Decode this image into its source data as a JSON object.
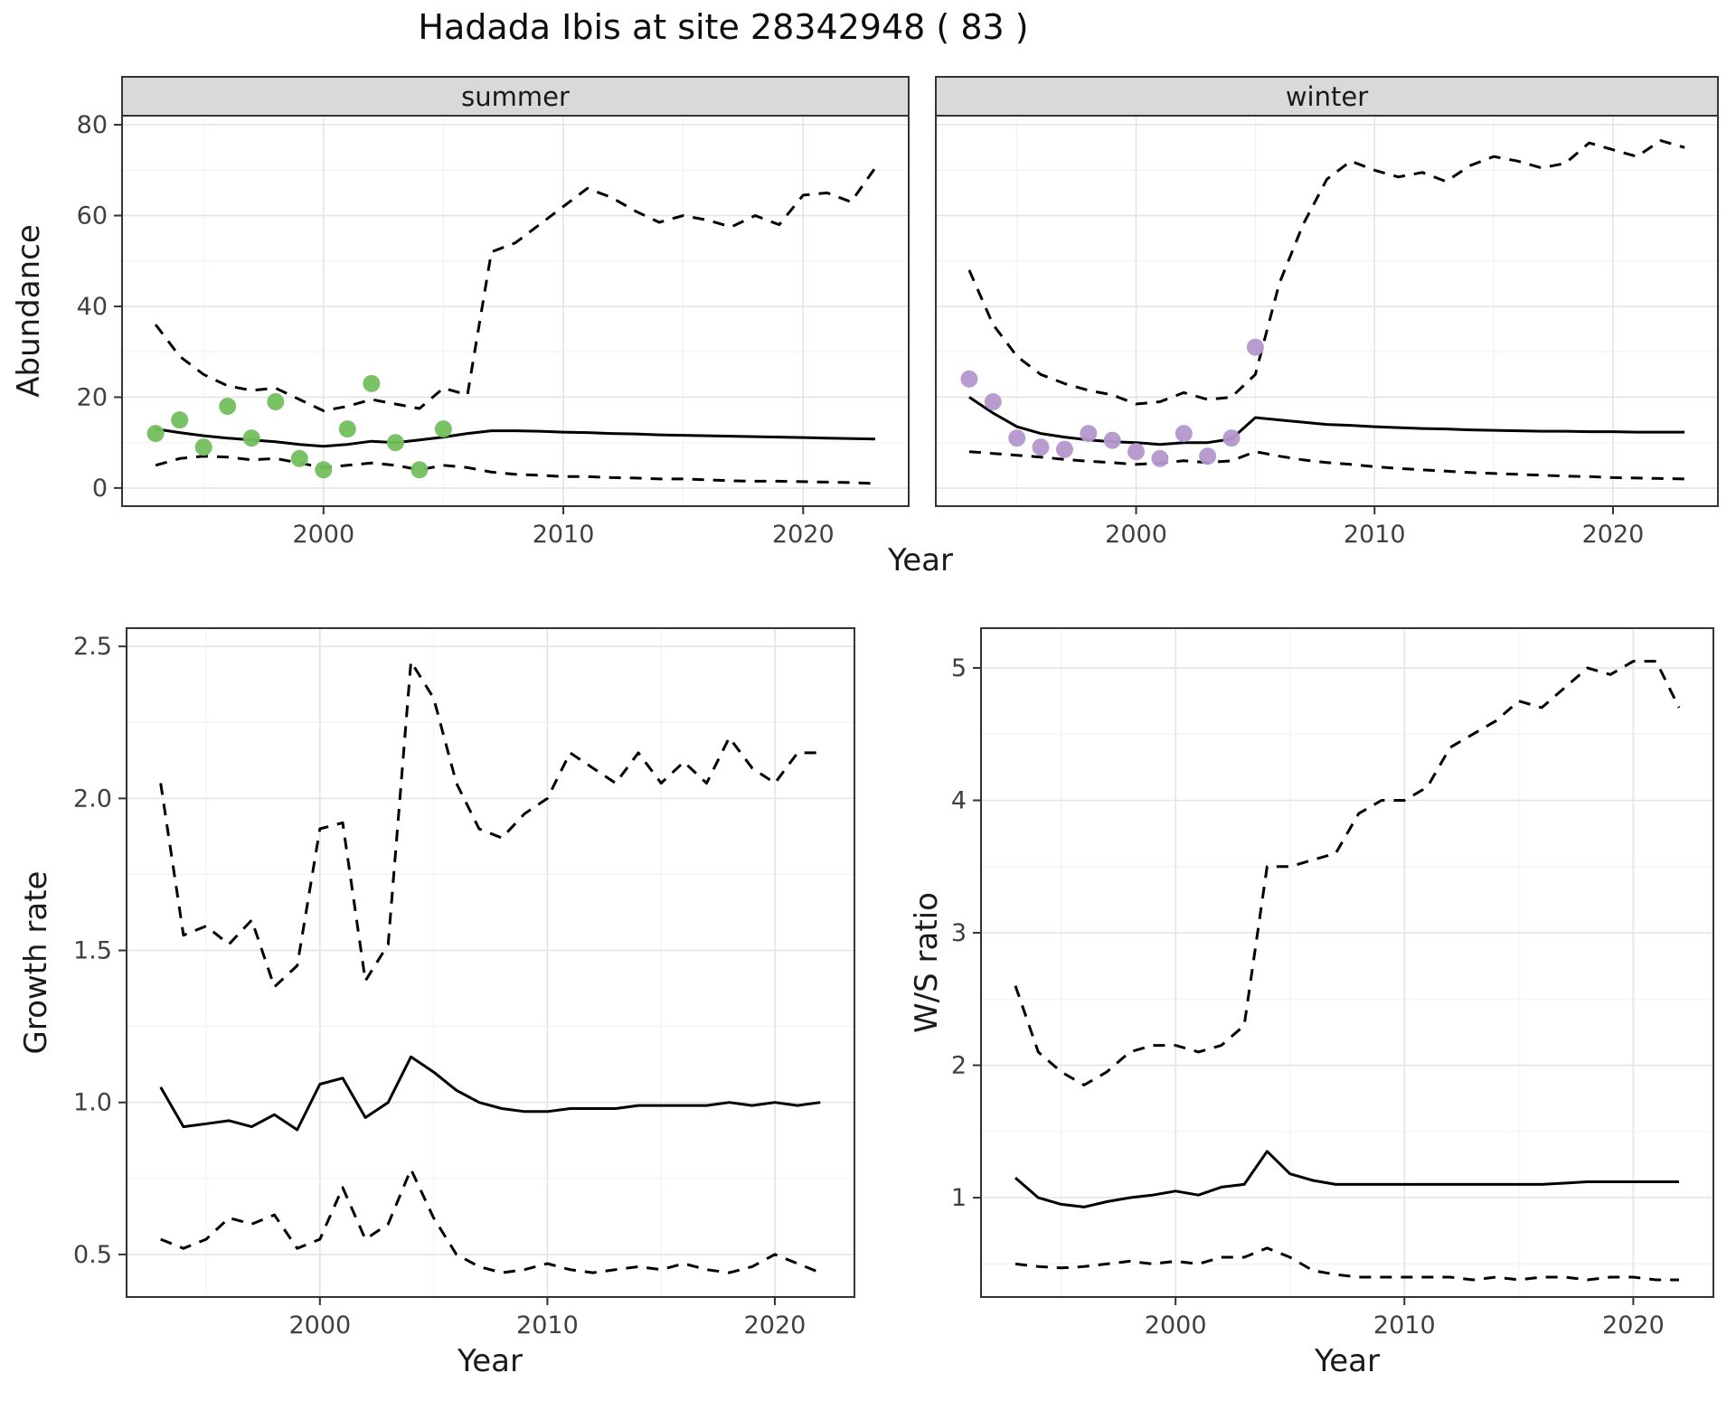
{
  "title": "Hadada Ibis at site 28342948 ( 83 )",
  "colors": {
    "summer_points": "#73BF5E",
    "winter_points": "#B497CE",
    "line": "#000000",
    "strip_background": "#D9D9D9",
    "panel_border": "#333333",
    "grid_major": "#E4E4E4",
    "grid_minor": "#F2F2F2",
    "tick_text": "#404040"
  },
  "chart_data": [
    {
      "id": "abundance-by-season",
      "type": "line",
      "xlabel": "Year",
      "ylabel": "Abundance",
      "legend": "none",
      "grid": true,
      "xlim": [
        1991.6,
        2024.4
      ],
      "ylim": [
        -4,
        82
      ],
      "xticks": [
        2000,
        2010,
        2020
      ],
      "xtick_labels": [
        "2000",
        "2010",
        "2020"
      ],
      "yticks": [
        0,
        20,
        40,
        60,
        80
      ],
      "ytick_labels": [
        "0",
        "20",
        "40",
        "60",
        "80"
      ],
      "years": [
        1993,
        1994,
        1995,
        1996,
        1997,
        1998,
        1999,
        2000,
        2001,
        2002,
        2003,
        2004,
        2005,
        2006,
        2007,
        2008,
        2009,
        2010,
        2011,
        2012,
        2013,
        2014,
        2015,
        2016,
        2017,
        2018,
        2019,
        2020,
        2021,
        2022,
        2023
      ],
      "panels": [
        {
          "facet": "summer",
          "median": [
            13,
            12.2,
            11.5,
            11,
            10.6,
            10.2,
            9.6,
            9.2,
            9.6,
            10.3,
            10,
            10.6,
            11.2,
            12,
            12.6,
            12.6,
            12.5,
            12.3,
            12.2,
            12,
            11.9,
            11.7,
            11.6,
            11.5,
            11.4,
            11.3,
            11.2,
            11.1,
            11,
            10.9,
            10.8
          ],
          "upper_ci": [
            36,
            29,
            25,
            22.5,
            21.5,
            22,
            19.5,
            17,
            18,
            19.5,
            18.5,
            17.5,
            22,
            20.5,
            52,
            54,
            58,
            62,
            66,
            64,
            61,
            58.5,
            60,
            59,
            57.5,
            60,
            58,
            64.5,
            65,
            63,
            70.5
          ],
          "lower_ci": [
            5,
            6.5,
            7,
            6.8,
            6.2,
            6.5,
            5.5,
            4.5,
            5,
            5.5,
            5,
            4,
            5,
            4.5,
            3.5,
            3,
            2.8,
            2.5,
            2.5,
            2.3,
            2.2,
            2,
            2,
            1.8,
            1.6,
            1.5,
            1.5,
            1.4,
            1.3,
            1.2,
            1
          ],
          "obs_years": [
            1993,
            1994,
            1995,
            1996,
            1997,
            1998,
            1999,
            2000,
            2001,
            2002,
            2003,
            2004,
            2005
          ],
          "obs_values": [
            12,
            15,
            9,
            18,
            11,
            19,
            6.5,
            4,
            13,
            23,
            10,
            4,
            13
          ]
        },
        {
          "facet": "winter",
          "median": [
            20,
            16.5,
            13.5,
            12,
            11.2,
            10.6,
            10.2,
            10,
            9.6,
            10,
            10,
            10.8,
            15.5,
            15,
            14.5,
            14,
            13.8,
            13.5,
            13.3,
            13.1,
            13,
            12.8,
            12.7,
            12.6,
            12.5,
            12.5,
            12.4,
            12.4,
            12.3,
            12.3,
            12.3
          ],
          "upper_ci": [
            48,
            36,
            29,
            25,
            23,
            21.5,
            20.5,
            18.5,
            19,
            21,
            19.5,
            20,
            25,
            45,
            58,
            68,
            72,
            70,
            68.5,
            69.5,
            67.5,
            71,
            73,
            72,
            70.5,
            71.5,
            76,
            74.5,
            73,
            76.5,
            75
          ],
          "lower_ci": [
            8,
            7.6,
            7.2,
            6.8,
            6.3,
            5.9,
            5.6,
            5.2,
            5.5,
            6,
            5.6,
            6,
            8,
            7,
            6.2,
            5.6,
            5.2,
            4.7,
            4.3,
            4,
            3.7,
            3.4,
            3.2,
            3,
            2.8,
            2.6,
            2.5,
            2.3,
            2.2,
            2.1,
            2
          ],
          "obs_years": [
            1993,
            1994,
            1995,
            1996,
            1997,
            1998,
            1999,
            2000,
            2001,
            2002,
            2003,
            2004,
            2005
          ],
          "obs_values": [
            24,
            19,
            11,
            9,
            8.5,
            12,
            10.5,
            8,
            6.5,
            12,
            7,
            11,
            31
          ]
        }
      ]
    },
    {
      "id": "growth-rate",
      "type": "line",
      "xlabel": "Year",
      "ylabel": "Growth rate",
      "legend": "none",
      "grid": true,
      "xlim": [
        1991.5,
        2023.5
      ],
      "ylim": [
        0.36,
        2.56
      ],
      "xticks": [
        2000,
        2010,
        2020
      ],
      "xtick_labels": [
        "2000",
        "2010",
        "2020"
      ],
      "yticks": [
        0.5,
        1.0,
        1.5,
        2.0,
        2.5
      ],
      "ytick_labels": [
        "0.5",
        "1.0",
        "1.5",
        "2.0",
        "2.5"
      ],
      "years": [
        1993,
        1994,
        1995,
        1996,
        1997,
        1998,
        1999,
        2000,
        2001,
        2002,
        2003,
        2004,
        2005,
        2006,
        2007,
        2008,
        2009,
        2010,
        2011,
        2012,
        2013,
        2014,
        2015,
        2016,
        2017,
        2018,
        2019,
        2020,
        2021,
        2022
      ],
      "median": [
        1.05,
        0.92,
        0.93,
        0.94,
        0.92,
        0.96,
        0.91,
        1.06,
        1.08,
        0.95,
        1,
        1.15,
        1.1,
        1.04,
        1,
        0.98,
        0.97,
        0.97,
        0.98,
        0.98,
        0.98,
        0.99,
        0.99,
        0.99,
        0.99,
        1,
        0.99,
        1,
        0.99,
        1
      ],
      "upper_ci": [
        2.05,
        1.55,
        1.58,
        1.52,
        1.6,
        1.38,
        1.45,
        1.9,
        1.92,
        1.4,
        1.52,
        2.45,
        2.33,
        2.05,
        1.9,
        1.87,
        1.95,
        2,
        2.15,
        2.1,
        2.05,
        2.15,
        2.05,
        2.12,
        2.05,
        2.2,
        2.1,
        2.05,
        2.15,
        2.15
      ],
      "lower_ci": [
        0.55,
        0.52,
        0.55,
        0.62,
        0.6,
        0.63,
        0.52,
        0.55,
        0.72,
        0.55,
        0.6,
        0.78,
        0.62,
        0.5,
        0.46,
        0.44,
        0.45,
        0.47,
        0.45,
        0.44,
        0.45,
        0.46,
        0.45,
        0.47,
        0.45,
        0.44,
        0.46,
        0.5,
        0.47,
        0.44
      ]
    },
    {
      "id": "ws-ratio",
      "type": "line",
      "xlabel": "Year",
      "ylabel": "W/S ratio",
      "legend": "none",
      "grid": true,
      "xlim": [
        1991.5,
        2023.5
      ],
      "ylim": [
        0.25,
        5.3
      ],
      "xticks": [
        2000,
        2010,
        2020
      ],
      "xtick_labels": [
        "2000",
        "2010",
        "2020"
      ],
      "yticks": [
        1,
        2,
        3,
        4,
        5
      ],
      "ytick_labels": [
        "1",
        "2",
        "3",
        "4",
        "5"
      ],
      "years": [
        1993,
        1994,
        1995,
        1996,
        1997,
        1998,
        1999,
        2000,
        2001,
        2002,
        2003,
        2004,
        2005,
        2006,
        2007,
        2008,
        2009,
        2010,
        2011,
        2012,
        2013,
        2014,
        2015,
        2016,
        2017,
        2018,
        2019,
        2020,
        2021,
        2022
      ],
      "median": [
        1.15,
        1,
        0.95,
        0.93,
        0.97,
        1,
        1.02,
        1.05,
        1.02,
        1.08,
        1.1,
        1.35,
        1.18,
        1.13,
        1.1,
        1.1,
        1.1,
        1.1,
        1.1,
        1.1,
        1.1,
        1.1,
        1.1,
        1.1,
        1.11,
        1.12,
        1.12,
        1.12,
        1.12,
        1.12
      ],
      "upper_ci": [
        2.6,
        2.1,
        1.95,
        1.85,
        1.95,
        2.1,
        2.15,
        2.15,
        2.1,
        2.15,
        2.3,
        3.5,
        3.5,
        3.55,
        3.6,
        3.9,
        4,
        4,
        4.1,
        4.4,
        4.5,
        4.6,
        4.75,
        4.7,
        4.85,
        5,
        4.95,
        5.05,
        5.05,
        4.7
      ],
      "lower_ci": [
        0.5,
        0.48,
        0.47,
        0.48,
        0.5,
        0.52,
        0.5,
        0.52,
        0.5,
        0.55,
        0.55,
        0.62,
        0.55,
        0.45,
        0.42,
        0.4,
        0.4,
        0.4,
        0.4,
        0.4,
        0.38,
        0.4,
        0.38,
        0.4,
        0.4,
        0.38,
        0.4,
        0.4,
        0.38,
        0.38
      ]
    }
  ]
}
